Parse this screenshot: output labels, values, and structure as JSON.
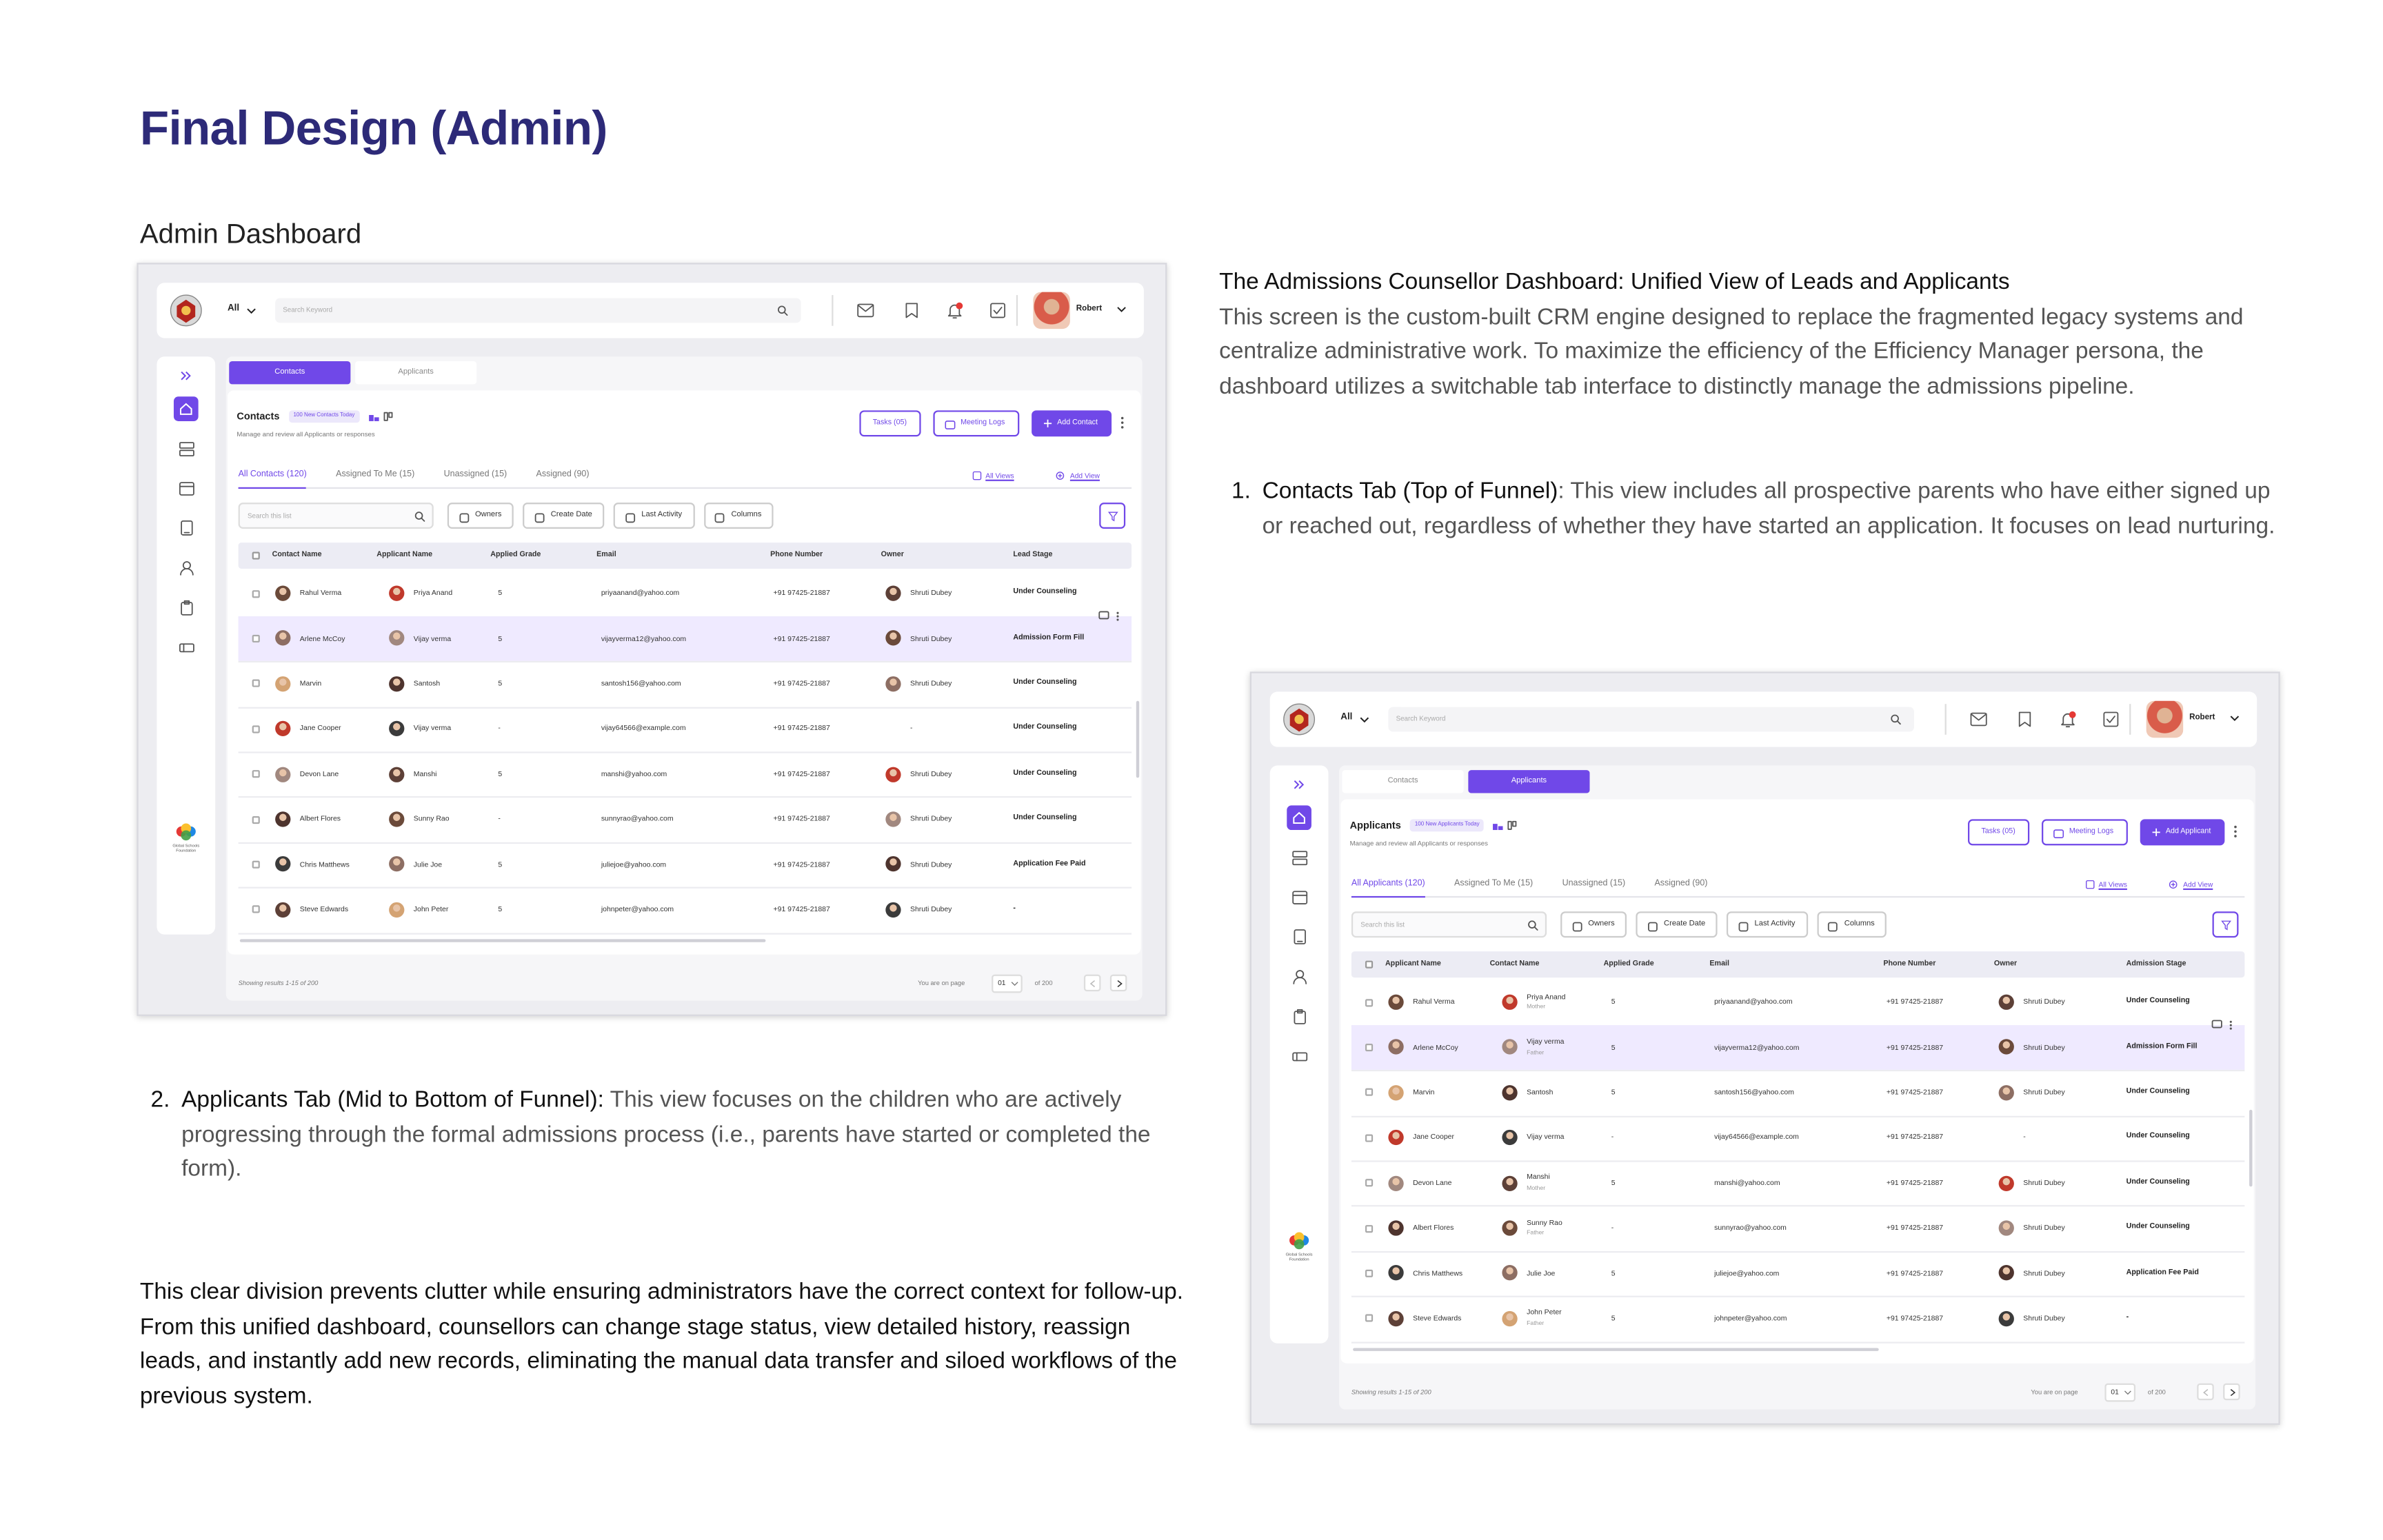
{
  "header": {
    "title": "Final Design (Admin)",
    "subtitle": "Admin Dashboard"
  },
  "description": {
    "heading": "The Admissions Counsellor Dashboard: Unified View of Leads and Applicants",
    "body": "This screen is the custom-built CRM engine designed to replace the fragmented legacy systems and centralize administrative work. To maximize the efficiency of the Efficiency Manager persona, the dashboard utilizes a switchable tab interface to distinctly manage the admissions pipeline.",
    "items": [
      {
        "number": "1.",
        "label": "Contacts Tab (Top of Funnel)",
        "text": ": This view includes all prospective parents who have either signed up or reached out, regardless of whether they have started an application. It focuses on lead nurturing."
      },
      {
        "number": "2.",
        "label": "Applicants Tab (Mid to Bottom of Funnel):",
        "text": "This view focuses on the children who are actively progressing through the formal admissions process (i.e., parents have started or completed the form)."
      }
    ],
    "conclusion": "This clear division prevents clutter while ensuring administrators have the correct context for follow-up. From this unified dashboard, counsellors can change stage status, view detailed history, reassign leads, and instantly add new records, eliminating the manual data transfer and siloed workflows of the previous system."
  },
  "dashboards": [
    {
      "filter": "All",
      "search": "Search Keyword",
      "user": "Robert",
      "logo": "Global Schools Foundation",
      "tabs": [
        "Contacts",
        "Applicants"
      ],
      "active_tab": 0,
      "title": "Contacts",
      "badge": "100 New Contacts Today",
      "subtitle": "Manage and review all Applicants or responses",
      "buttons": {
        "tasks": "Tasks (05)",
        "meetings": "Meeting Logs",
        "add": "Add Contact"
      },
      "views": [
        "All Contacts (120)",
        "Assigned To Me (15)",
        "Unassigned (15)",
        "Assigned (90)"
      ],
      "all_views": "All Views",
      "add_view": "Add View",
      "list_search": "Search this list",
      "filters": [
        "Owners",
        "Create Date",
        "Last Activity",
        "Columns"
      ],
      "columns": [
        "Contact Name",
        "Applicant Name",
        "Applied Grade",
        "Email",
        "Phone Number",
        "Owner",
        "Lead Stage"
      ],
      "highlight_row": 1,
      "rows": [
        {
          "cells": [
            "Rahul Verma",
            "Priya Anand",
            "5",
            "priyaanand@yahoo.com",
            "+91 97425-21887",
            "Shruti Dubey",
            "Under Counseling"
          ]
        },
        {
          "cells": [
            "Arlene McCoy",
            "Vijay verma",
            "5",
            "vijayverma12@yahoo.com",
            "+91 97425-21887",
            "Shruti Dubey",
            "Admission Form Fill"
          ]
        },
        {
          "cells": [
            "Marvin",
            "Santosh",
            "5",
            "santosh156@yahoo.com",
            "+91 97425-21887",
            "Shruti Dubey",
            "Under Counseling"
          ]
        },
        {
          "cells": [
            "Jane Cooper",
            "Vijay verma",
            "-",
            "vijay64566@example.com",
            "+91 97425-21887",
            "-",
            "Under Counseling"
          ]
        },
        {
          "cells": [
            "Devon Lane",
            "Manshi",
            "5",
            "manshi@yahoo.com",
            "+91 97425-21887",
            "Shruti Dubey",
            "Under Counseling"
          ]
        },
        {
          "cells": [
            "Albert Flores",
            "Sunny Rao",
            "-",
            "sunnyrao@yahoo.com",
            "+91 97425-21887",
            "Shruti Dubey",
            "Under Counseling"
          ]
        },
        {
          "cells": [
            "Chris Matthews",
            "Julie Joe",
            "5",
            "juliejoe@yahoo.com",
            "+91 97425-21887",
            "Shruti Dubey",
            "Application Fee Paid"
          ]
        },
        {
          "cells": [
            "Steve Edwards",
            "John Peter",
            "5",
            "johnpeter@yahoo.com",
            "+91 97425-21887",
            "Shruti Dubey",
            "-"
          ]
        }
      ],
      "footer": {
        "results": "Showing results 1-15 of 200",
        "page_label": "You are on page",
        "page": "01",
        "page_total": "of 200"
      }
    },
    {
      "filter": "All",
      "search": "Search Keyword",
      "user": "Robert",
      "logo": "Global Schools Foundation",
      "tabs": [
        "Contacts",
        "Applicants"
      ],
      "active_tab": 1,
      "title": "Applicants",
      "badge": "100 New Applicants Today",
      "subtitle": "Manage and review all Applicants or responses",
      "buttons": {
        "tasks": "Tasks (05)",
        "meetings": "Meeting Logs",
        "add": "Add Applicant"
      },
      "views": [
        "All Applicants (120)",
        "Assigned To Me (15)",
        "Unassigned (15)",
        "Assigned (90)"
      ],
      "all_views": "All Views",
      "add_view": "Add View",
      "list_search": "Search this list",
      "filters": [
        "Owners",
        "Create Date",
        "Last Activity",
        "Columns"
      ],
      "columns": [
        "Applicant Name",
        "Contact Name",
        "Applied Grade",
        "Email",
        "Phone Number",
        "Owner",
        "Admission Stage"
      ],
      "highlight_row": 1,
      "rows": [
        {
          "cells": [
            "Rahul Verma",
            "Priya Anand",
            "5",
            "priyaanand@yahoo.com",
            "+91 97425-21887",
            "Shruti Dubey",
            "Under Counseling"
          ],
          "relation": "Mother"
        },
        {
          "cells": [
            "Arlene McCoy",
            "Vijay verma",
            "5",
            "vijayverma12@yahoo.com",
            "+91 97425-21887",
            "Shruti Dubey",
            "Admission Form Fill"
          ],
          "relation": "Father"
        },
        {
          "cells": [
            "Marvin",
            "Santosh",
            "5",
            "santosh156@yahoo.com",
            "+91 97425-21887",
            "Shruti Dubey",
            "Under Counseling"
          ]
        },
        {
          "cells": [
            "Jane Cooper",
            "Vijay verma",
            "-",
            "vijay64566@example.com",
            "+91 97425-21887",
            "-",
            "Under Counseling"
          ]
        },
        {
          "cells": [
            "Devon Lane",
            "Manshi",
            "5",
            "manshi@yahoo.com",
            "+91 97425-21887",
            "Shruti Dubey",
            "Under Counseling"
          ],
          "relation": "Mother"
        },
        {
          "cells": [
            "Albert Flores",
            "Sunny Rao",
            "-",
            "sunnyrao@yahoo.com",
            "+91 97425-21887",
            "Shruti Dubey",
            "Under Counseling"
          ],
          "relation": "Father"
        },
        {
          "cells": [
            "Chris Matthews",
            "Julie Joe",
            "5",
            "juliejoe@yahoo.com",
            "+91 97425-21887",
            "Shruti Dubey",
            "Application Fee Paid"
          ]
        },
        {
          "cells": [
            "Steve Edwards",
            "John Peter",
            "5",
            "johnpeter@yahoo.com",
            "+91 97425-21887",
            "Shruti Dubey",
            "-"
          ],
          "relation": "Father"
        }
      ],
      "footer": {
        "results": "Showing results 1-15 of 200",
        "page_label": "You are on page",
        "page": "01",
        "page_total": "of 200"
      }
    }
  ]
}
